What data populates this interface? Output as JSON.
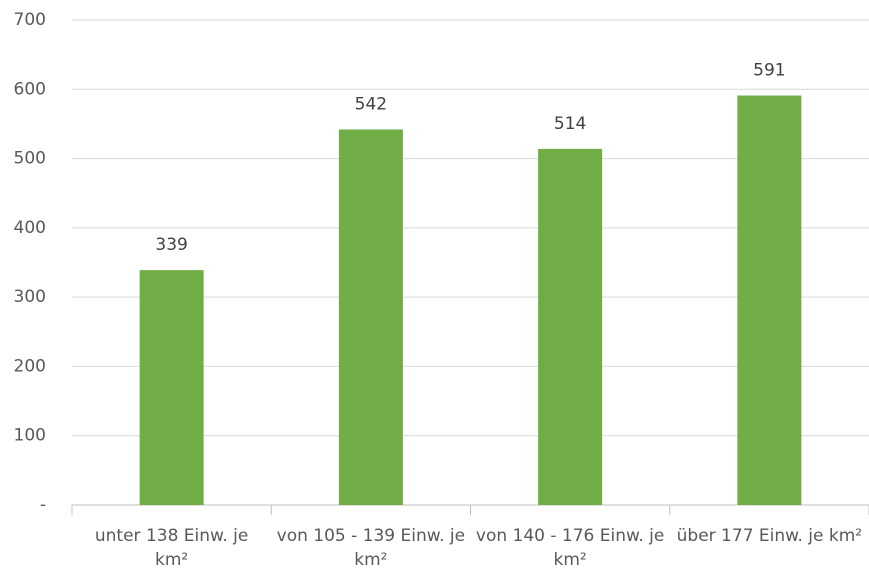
{
  "chart_data": {
    "type": "bar",
    "categories": [
      "unter 138 Einw. je km²",
      "von 105 - 139 Einw. je km²",
      "von 140 - 176 Einw. je km²",
      "über 177 Einw. je km²"
    ],
    "values": [
      339,
      542,
      514,
      591
    ],
    "color": "#70ad47",
    "ylim": [
      0,
      700
    ],
    "yticks": [
      {
        "value": 0,
        "label": "-"
      },
      100,
      200,
      300,
      400,
      500,
      600,
      700
    ],
    "grid": true
  }
}
